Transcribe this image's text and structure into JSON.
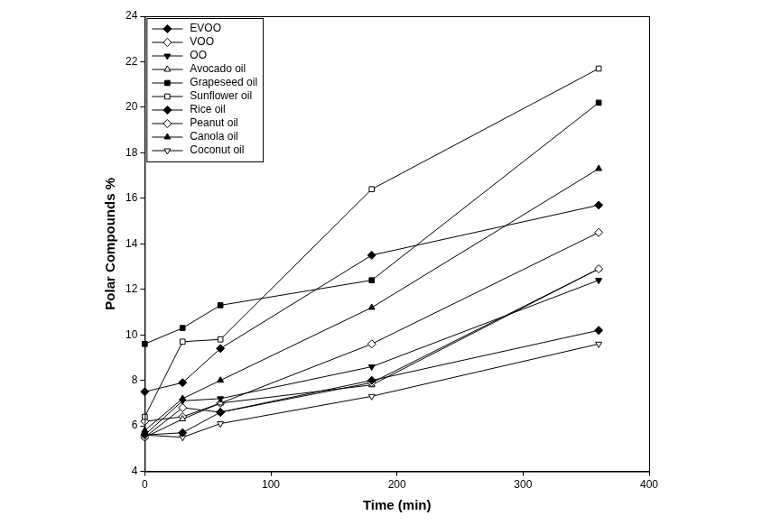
{
  "chart_data": {
    "type": "line",
    "x_label": "Time (min)",
    "y_label": "Polar Compounds %",
    "x": [
      0,
      30,
      60,
      180,
      360
    ],
    "xlim": [
      0,
      400
    ],
    "xticks": [
      0,
      100,
      200,
      300,
      400
    ],
    "ylim": [
      4,
      24
    ],
    "yticks": [
      4,
      6,
      8,
      10,
      12,
      14,
      16,
      18,
      20,
      22,
      24
    ],
    "grid": false,
    "legend": "upper left",
    "series": [
      {
        "name": "EVOO",
        "color": "#000000",
        "marker": "diamond",
        "values": [
          5.6,
          5.7,
          6.6,
          8.0,
          10.2
        ]
      },
      {
        "name": "VOO",
        "color": "#000000",
        "marker": "diamond_open",
        "values": [
          5.5,
          6.8,
          6.6,
          7.9,
          12.9
        ]
      },
      {
        "name": "OO",
        "color": "#000000",
        "marker": "triangle_down",
        "values": [
          5.6,
          7.1,
          7.2,
          8.6,
          12.4
        ]
      },
      {
        "name": "Avocado oil",
        "color": "#000000",
        "marker": "triangle_open",
        "values": [
          5.5,
          6.3,
          7.0,
          7.8,
          12.9
        ]
      },
      {
        "name": "Grapeseed oil",
        "color": "#000000",
        "marker": "square",
        "values": [
          9.6,
          10.3,
          11.3,
          12.4,
          20.2
        ]
      },
      {
        "name": "Sunflower oil",
        "color": "#000000",
        "marker": "square_open",
        "values": [
          6.4,
          9.7,
          9.8,
          16.4,
          21.7
        ]
      },
      {
        "name": "Rice oil",
        "color": "#000000",
        "marker": "diamond",
        "values": [
          7.5,
          7.9,
          9.4,
          13.5,
          15.7
        ]
      },
      {
        "name": "Peanut oil",
        "color": "#000000",
        "marker": "diamond_open",
        "values": [
          6.2,
          6.4,
          7.0,
          9.6,
          14.5
        ]
      },
      {
        "name": "Canola oil",
        "color": "#000000",
        "marker": "triangle",
        "values": [
          5.8,
          7.2,
          8.0,
          11.2,
          17.3
        ]
      },
      {
        "name": "Coconut oil",
        "color": "#000000",
        "marker": "triangle_down_open",
        "values": [
          5.6,
          5.5,
          6.1,
          7.3,
          9.6
        ]
      }
    ]
  }
}
